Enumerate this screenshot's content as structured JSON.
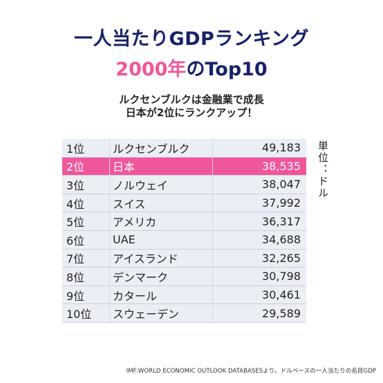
{
  "title_line1": "一人当たりGDPランキング",
  "title_line2_accent": "2000年",
  "title_line2_rest": "のTop10",
  "subtitle_line1": "ルクセンブルクは金融業で成長",
  "subtitle_line2": "日本が2位にランクアップ！",
  "unit_label": "単位：ドル",
  "footer": "IMF:WORLD ECONOMIC OUTLOOK DATABASESより。ドルベースの一人当たりの名目GDP",
  "colors": {
    "title": "#16226a",
    "accent": "#f0569a",
    "row_bg": "#eceef6"
  },
  "chart_data": {
    "type": "table",
    "rows": [
      {
        "rank": "1位",
        "country": "ルクセンブルク",
        "value": "49,183"
      },
      {
        "rank": "2位",
        "country": "日本",
        "value": "38,535",
        "highlight": true
      },
      {
        "rank": "3位",
        "country": "ノルウェイ",
        "value": "38,047"
      },
      {
        "rank": "4位",
        "country": "スイス",
        "value": "37,992"
      },
      {
        "rank": "5位",
        "country": "アメリカ",
        "value": "36,317"
      },
      {
        "rank": "6位",
        "country": "UAE",
        "value": "34,688"
      },
      {
        "rank": "7位",
        "country": "アイスランド",
        "value": "32,265"
      },
      {
        "rank": "8位",
        "country": "デンマーク",
        "value": "30,798"
      },
      {
        "rank": "9位",
        "country": "カタール",
        "value": "30,461"
      },
      {
        "rank": "10位",
        "country": "スウェーデン",
        "value": "29,589"
      }
    ]
  }
}
